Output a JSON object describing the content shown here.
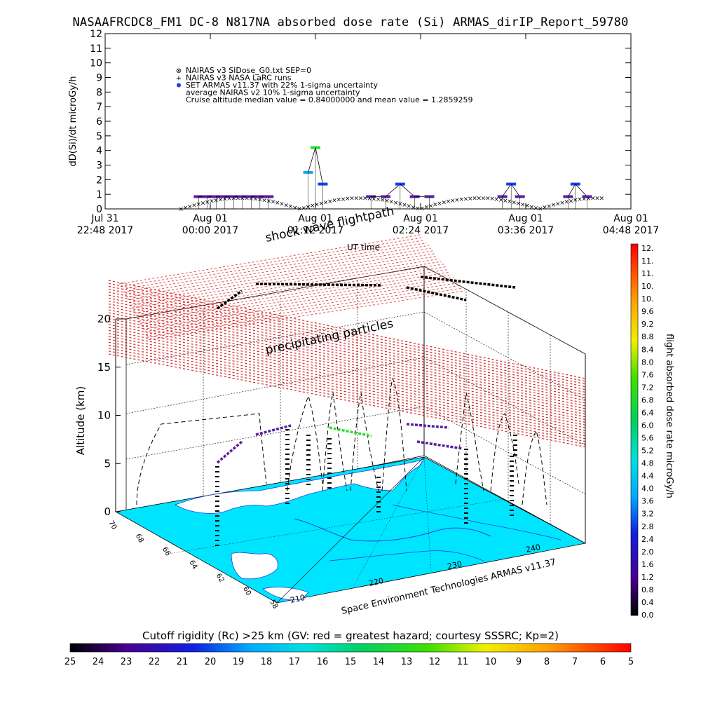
{
  "title": "NASAAFRCDC8_FM1 DC-8   N817NA absorbed dose rate (Si) ARMAS_dirIP_Report_59780",
  "chart_data": [
    {
      "type": "scatter",
      "title": "NASAAFRCDC8_FM1 DC-8   N817NA absorbed dose rate (Si) ARMAS_dirIP_Report_59780",
      "ylabel": "dD(Si)/dt microGy/h",
      "xlabel": "UT time",
      "ylim": [
        0,
        12
      ],
      "yticks": [
        "0",
        "1",
        "2",
        "3",
        "4",
        "5",
        "6",
        "7",
        "8",
        "9",
        "10",
        "11",
        "12"
      ],
      "xticks": [
        {
          "line1": "Jul 31",
          "line2": "22:48 2017"
        },
        {
          "line1": "Aug 01",
          "line2": "00:00 2017"
        },
        {
          "line1": "Aug 01",
          "line2": "01:12 2017"
        },
        {
          "line1": "Aug 01",
          "line2": "02:24 2017"
        },
        {
          "line1": "Aug 01",
          "line2": "03:36 2017"
        },
        {
          "line1": "Aug 01",
          "line2": "04:48 2017"
        }
      ],
      "legend": [
        {
          "symbol": "⊗",
          "label": "NAIRAS v3 SIDose_G0.txt SEP=0"
        },
        {
          "symbol": "+",
          "label": "NAIRAS v3 NASA LaRC runs"
        },
        {
          "symbol": "●",
          "label": "SET ARMAS v11.37 with 22% 1-sigma uncertainty"
        },
        {
          "symbol": "",
          "label": "average NAIRAS v2 10% 1-sigma uncertainty"
        },
        {
          "symbol": "",
          "label": "Cruise altitude median value = 0.84000000 and mean value = 1.2859259"
        }
      ],
      "legend_position": "top-left",
      "series": [
        {
          "name": "SET ARMAS v11.37 with 22% 1-sigma uncertainty",
          "points": [
            {
              "x": "23:52",
              "y": 0.84
            },
            {
              "x": "23:58",
              "y": 0.84
            },
            {
              "x": "00:04",
              "y": 0.84
            },
            {
              "x": "00:10",
              "y": 0.84
            },
            {
              "x": "00:16",
              "y": 0.84
            },
            {
              "x": "00:22",
              "y": 0.84
            },
            {
              "x": "00:28",
              "y": 0.84
            },
            {
              "x": "00:34",
              "y": 0.84
            },
            {
              "x": "00:40",
              "y": 0.84
            },
            {
              "x": "01:07",
              "y": 2.5
            },
            {
              "x": "01:12",
              "y": 4.2
            },
            {
              "x": "01:17",
              "y": 1.7
            },
            {
              "x": "01:50",
              "y": 0.84
            },
            {
              "x": "02:00",
              "y": 0.84
            },
            {
              "x": "02:10",
              "y": 1.7
            },
            {
              "x": "02:20",
              "y": 0.84
            },
            {
              "x": "02:30",
              "y": 0.84
            },
            {
              "x": "03:20",
              "y": 0.84
            },
            {
              "x": "03:26",
              "y": 1.7
            },
            {
              "x": "03:32",
              "y": 0.84
            },
            {
              "x": "04:05",
              "y": 0.84
            },
            {
              "x": "04:10",
              "y": 1.7
            },
            {
              "x": "04:18",
              "y": 0.84
            }
          ]
        }
      ]
    },
    {
      "type": "3d-scatter",
      "zlabel": "Altitude (km)",
      "zticks": [
        "0",
        "5",
        "10",
        "15",
        "20"
      ],
      "xticks": [
        "210",
        "220",
        "230",
        "240"
      ],
      "yticks": [
        "58",
        "60",
        "62",
        "64",
        "66",
        "68",
        "70"
      ],
      "annotations": [
        "shock wave flightpath",
        "UT time",
        "precipitating particles"
      ],
      "credit": "Space Environment Technologies ARMAS v11.37",
      "colorbar_right": {
        "label": "flight absorbed dose rate microGy/h",
        "ticks": [
          "12.",
          "11.",
          "11.",
          "10.",
          "10.",
          "9.6",
          "9.2",
          "8.8",
          "8.4",
          "8.0",
          "7.6",
          "7.2",
          "6.8",
          "6.4",
          "6.0",
          "5.6",
          "5.2",
          "4.8",
          "4.4",
          "4.0",
          "3.6",
          "3.2",
          "2.8",
          "2.4",
          "2.0",
          "1.6",
          "1.2",
          "0.8",
          "0.4",
          "0.0"
        ]
      },
      "colorbar_bottom": {
        "label": "Cutoff rigidity (Rc) >25 km (GV: red = greatest hazard; courtesy SSSRC; Kp=2)",
        "ticks": [
          "25",
          "24",
          "23",
          "22",
          "21",
          "20",
          "19",
          "18",
          "17",
          "16",
          "15",
          "14",
          "13",
          "12",
          "11",
          "10",
          "9",
          "8",
          "7",
          "6",
          "5"
        ]
      },
      "colors": {
        "ocean": "#00e5ff",
        "land": "#ffffff",
        "mesh": "#e00000"
      }
    }
  ]
}
